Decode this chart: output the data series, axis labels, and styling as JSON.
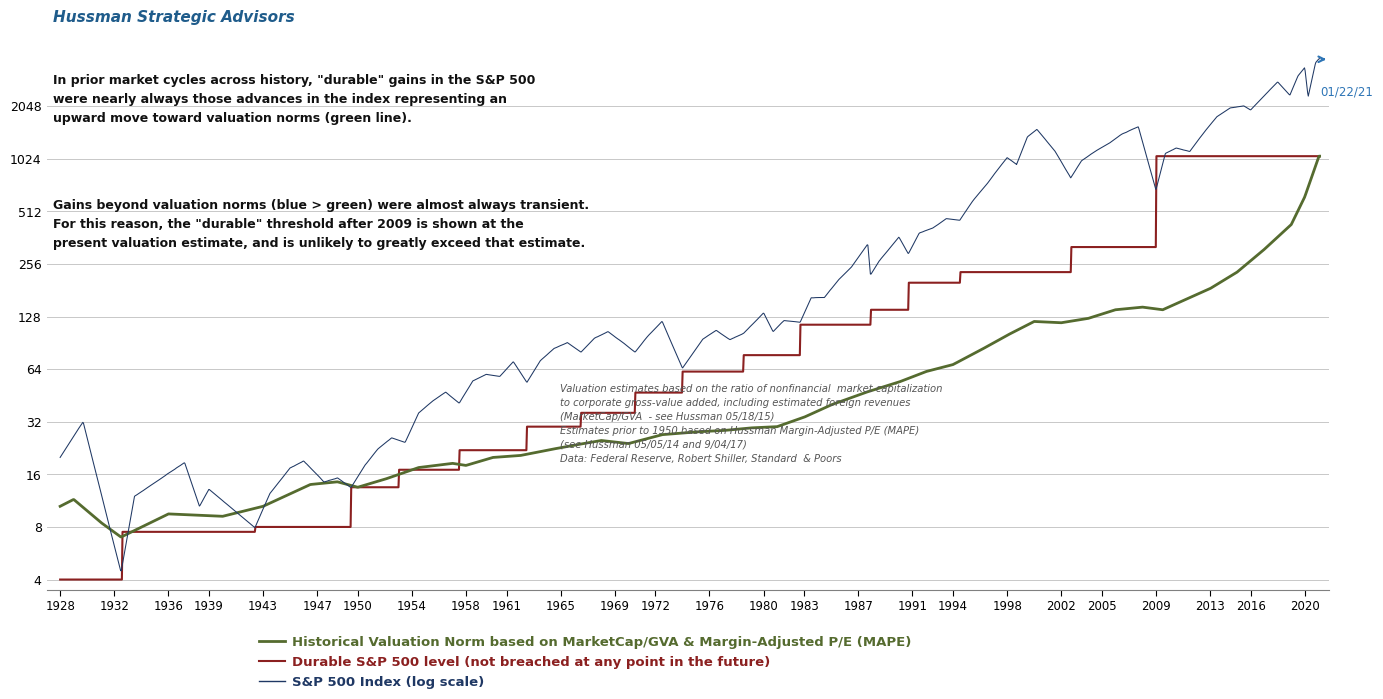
{
  "title": "Hussman Strategic Advisors",
  "title_color": "#1F5C8B",
  "background_color": "#FFFFFF",
  "annotation_text1": "In prior market cycles across history, \"durable\" gains in the S&P 500\nwere nearly always those advances in the index representing an\nupward move toward valuation norms (green line).",
  "annotation_text2": "Gains beyond valuation norms (blue > green) were almost always transient.\nFor this reason, the \"durable\" threshold after 2009 is shown at the\npresent valuation estimate, and is unlikely to greatly exceed that estimate.",
  "footnote_text": "Valuation estimates based on the ratio of nonfinancial  market capitalization\nto corporate gross-value added, including estimated foreign revenues\n(MarketCap/GVA  - see Hussman 05/18/15)\nEstimates prior to 1950 based on Hussman Margin-Adjusted P/E (MAPE)\n(see Hussman 05/05/14 and 9/04/17)\nData: Federal Reserve, Robert Shiller, Standard  & Poors",
  "date_label": "01/22/21",
  "yticks": [
    4,
    8,
    16,
    32,
    64,
    128,
    256,
    512,
    1024,
    2048
  ],
  "ylim": [
    3.5,
    4500
  ],
  "xtick_years": [
    1928,
    1932,
    1936,
    1939,
    1943,
    1947,
    1950,
    1954,
    1958,
    1961,
    1965,
    1969,
    1972,
    1976,
    1980,
    1983,
    1987,
    1991,
    1994,
    1998,
    2002,
    2005,
    2009,
    2013,
    2016,
    2020
  ],
  "xlim": [
    1927.0,
    2021.8
  ],
  "legend_entries": [
    {
      "label": "Historical Valuation Norm based on MarketCap/GVA & Margin-Adjusted P/E (MAPE)",
      "color": "#556B2F",
      "lw": 2.0
    },
    {
      "label": "Durable S&P 500 level (not breached at any point in the future)",
      "color": "#8B2020",
      "lw": 1.5
    },
    {
      "label": "S&P 500 Index (log scale)",
      "color": "#1F3864",
      "lw": 1.0
    }
  ],
  "sp500_color": "#1F3864",
  "valuation_color": "#556B2F",
  "durable_color": "#8B2020",
  "arrow_color": "#2E75B6",
  "grid_color": "#C8C8C8",
  "sp500_anchors": [
    [
      1928.0,
      20.0
    ],
    [
      1929.7,
      31.9
    ],
    [
      1932.5,
      4.4
    ],
    [
      1933.5,
      12.0
    ],
    [
      1937.2,
      18.7
    ],
    [
      1938.3,
      10.5
    ],
    [
      1939.0,
      13.2
    ],
    [
      1942.4,
      8.0
    ],
    [
      1943.5,
      12.5
    ],
    [
      1945.0,
      17.5
    ],
    [
      1946.0,
      19.2
    ],
    [
      1947.5,
      14.5
    ],
    [
      1948.5,
      15.3
    ],
    [
      1949.5,
      13.5
    ],
    [
      1950.5,
      18.0
    ],
    [
      1951.5,
      22.5
    ],
    [
      1952.5,
      26.0
    ],
    [
      1953.5,
      24.5
    ],
    [
      1954.5,
      36.0
    ],
    [
      1955.5,
      42.0
    ],
    [
      1956.5,
      47.5
    ],
    [
      1957.5,
      41.0
    ],
    [
      1958.5,
      55.0
    ],
    [
      1959.5,
      60.0
    ],
    [
      1960.5,
      58.5
    ],
    [
      1961.5,
      71.0
    ],
    [
      1962.5,
      54.0
    ],
    [
      1963.5,
      72.0
    ],
    [
      1964.5,
      84.0
    ],
    [
      1965.5,
      91.0
    ],
    [
      1966.5,
      80.0
    ],
    [
      1967.5,
      96.0
    ],
    [
      1968.5,
      105.0
    ],
    [
      1969.5,
      92.0
    ],
    [
      1970.5,
      80.0
    ],
    [
      1971.5,
      100.0
    ],
    [
      1972.5,
      120.0
    ],
    [
      1974.0,
      65.0
    ],
    [
      1975.5,
      95.0
    ],
    [
      1976.5,
      107.0
    ],
    [
      1977.5,
      95.0
    ],
    [
      1978.5,
      103.0
    ],
    [
      1980.0,
      135.0
    ],
    [
      1980.7,
      105.0
    ],
    [
      1981.5,
      122.0
    ],
    [
      1982.7,
      120.0
    ],
    [
      1983.5,
      166.0
    ],
    [
      1984.5,
      167.0
    ],
    [
      1985.5,
      210.0
    ],
    [
      1986.5,
      250.0
    ],
    [
      1987.7,
      337.0
    ],
    [
      1987.9,
      224.0
    ],
    [
      1988.5,
      265.0
    ],
    [
      1990.0,
      368.0
    ],
    [
      1990.7,
      295.0
    ],
    [
      1991.5,
      388.0
    ],
    [
      1992.5,
      415.0
    ],
    [
      1993.5,
      470.0
    ],
    [
      1994.5,
      460.0
    ],
    [
      1995.5,
      600.0
    ],
    [
      1996.5,
      740.0
    ],
    [
      1997.5,
      940.0
    ],
    [
      1998.0,
      1050.0
    ],
    [
      1998.7,
      960.0
    ],
    [
      1999.5,
      1380.0
    ],
    [
      2000.2,
      1520.0
    ],
    [
      2001.5,
      1150.0
    ],
    [
      2002.7,
      800.0
    ],
    [
      2003.5,
      1000.0
    ],
    [
      2004.5,
      1130.0
    ],
    [
      2005.5,
      1250.0
    ],
    [
      2006.5,
      1420.0
    ],
    [
      2007.7,
      1560.0
    ],
    [
      2009.0,
      680.0
    ],
    [
      2009.7,
      1100.0
    ],
    [
      2010.5,
      1180.0
    ],
    [
      2011.5,
      1130.0
    ],
    [
      2012.5,
      1430.0
    ],
    [
      2013.5,
      1780.0
    ],
    [
      2014.5,
      2000.0
    ],
    [
      2015.5,
      2050.0
    ],
    [
      2016.0,
      1940.0
    ],
    [
      2017.5,
      2560.0
    ],
    [
      2018.0,
      2800.0
    ],
    [
      2018.9,
      2350.0
    ],
    [
      2019.5,
      3025.0
    ],
    [
      2020.0,
      3380.0
    ],
    [
      2020.25,
      2300.0
    ],
    [
      2020.8,
      3600.0
    ],
    [
      2021.05,
      3800.0
    ]
  ],
  "valuation_anchors": [
    [
      1928.0,
      10.5
    ],
    [
      1929.0,
      11.5
    ],
    [
      1931.0,
      8.5
    ],
    [
      1932.5,
      7.0
    ],
    [
      1936.0,
      9.5
    ],
    [
      1940.0,
      9.2
    ],
    [
      1943.0,
      10.5
    ],
    [
      1946.5,
      14.0
    ],
    [
      1948.5,
      14.5
    ],
    [
      1950.0,
      13.5
    ],
    [
      1952.0,
      15.0
    ],
    [
      1954.5,
      17.5
    ],
    [
      1957.0,
      18.5
    ],
    [
      1958.0,
      18.0
    ],
    [
      1960.0,
      20.0
    ],
    [
      1962.0,
      20.5
    ],
    [
      1964.0,
      22.0
    ],
    [
      1966.0,
      23.5
    ],
    [
      1968.0,
      25.0
    ],
    [
      1970.0,
      24.0
    ],
    [
      1972.5,
      27.0
    ],
    [
      1975.0,
      28.0
    ],
    [
      1977.0,
      28.5
    ],
    [
      1979.0,
      29.5
    ],
    [
      1981.0,
      30.0
    ],
    [
      1983.0,
      34.0
    ],
    [
      1985.0,
      40.0
    ],
    [
      1987.5,
      47.0
    ],
    [
      1990.0,
      54.0
    ],
    [
      1992.0,
      62.0
    ],
    [
      1994.0,
      68.0
    ],
    [
      1996.0,
      82.0
    ],
    [
      1998.0,
      100.0
    ],
    [
      2000.0,
      120.0
    ],
    [
      2002.0,
      118.0
    ],
    [
      2004.0,
      125.0
    ],
    [
      2006.0,
      140.0
    ],
    [
      2008.0,
      145.0
    ],
    [
      2009.5,
      140.0
    ],
    [
      2011.0,
      158.0
    ],
    [
      2013.0,
      185.0
    ],
    [
      2015.0,
      230.0
    ],
    [
      2017.0,
      310.0
    ],
    [
      2019.0,
      430.0
    ],
    [
      2020.0,
      620.0
    ],
    [
      2021.05,
      1060.0
    ]
  ],
  "durable_steps": [
    [
      1928.0,
      4.0
    ],
    [
      1932.6,
      4.0
    ],
    [
      1932.61,
      7.5
    ],
    [
      1942.4,
      7.5
    ],
    [
      1942.41,
      8.0
    ],
    [
      1949.5,
      8.0
    ],
    [
      1949.51,
      13.5
    ],
    [
      1953.0,
      13.5
    ],
    [
      1953.01,
      17.0
    ],
    [
      1957.5,
      17.0
    ],
    [
      1957.51,
      22.0
    ],
    [
      1962.5,
      22.0
    ],
    [
      1962.51,
      30.0
    ],
    [
      1966.5,
      30.0
    ],
    [
      1966.51,
      36.0
    ],
    [
      1970.5,
      36.0
    ],
    [
      1970.51,
      47.0
    ],
    [
      1974.0,
      47.0
    ],
    [
      1974.01,
      62.0
    ],
    [
      1978.5,
      62.0
    ],
    [
      1978.51,
      77.0
    ],
    [
      1982.7,
      77.0
    ],
    [
      1982.71,
      115.0
    ],
    [
      1987.9,
      115.0
    ],
    [
      1987.91,
      140.0
    ],
    [
      1990.7,
      140.0
    ],
    [
      1990.71,
      200.0
    ],
    [
      1994.5,
      200.0
    ],
    [
      1994.51,
      230.0
    ],
    [
      2002.7,
      230.0
    ],
    [
      2002.71,
      320.0
    ],
    [
      2009.0,
      320.0
    ],
    [
      2009.01,
      1060.0
    ],
    [
      2021.1,
      1060.0
    ]
  ]
}
